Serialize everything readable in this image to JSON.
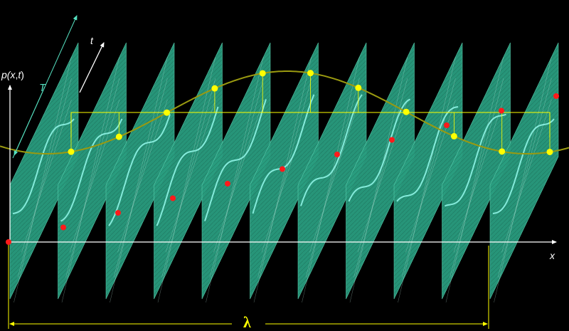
{
  "labels": {
    "p": "p(",
    "x_in_p": "x",
    "comma": ",",
    "t_in_p": "t",
    "close": ")",
    "T": "T",
    "t_axis": "t",
    "x_axis": "x",
    "lambda": "λ"
  },
  "colors": {
    "background": "#000000",
    "panel": "#2a9e80",
    "panel_edge": "#5ad0b0",
    "inner_wave": "#8ff4e6",
    "outer_wave": "#9a9a10",
    "yellow": "#ffff00",
    "red_dot": "#ff1a1a",
    "axis": "#ffffff",
    "period_arrow": "#55e0c0"
  },
  "panel_count": 11,
  "point_count": 11
}
